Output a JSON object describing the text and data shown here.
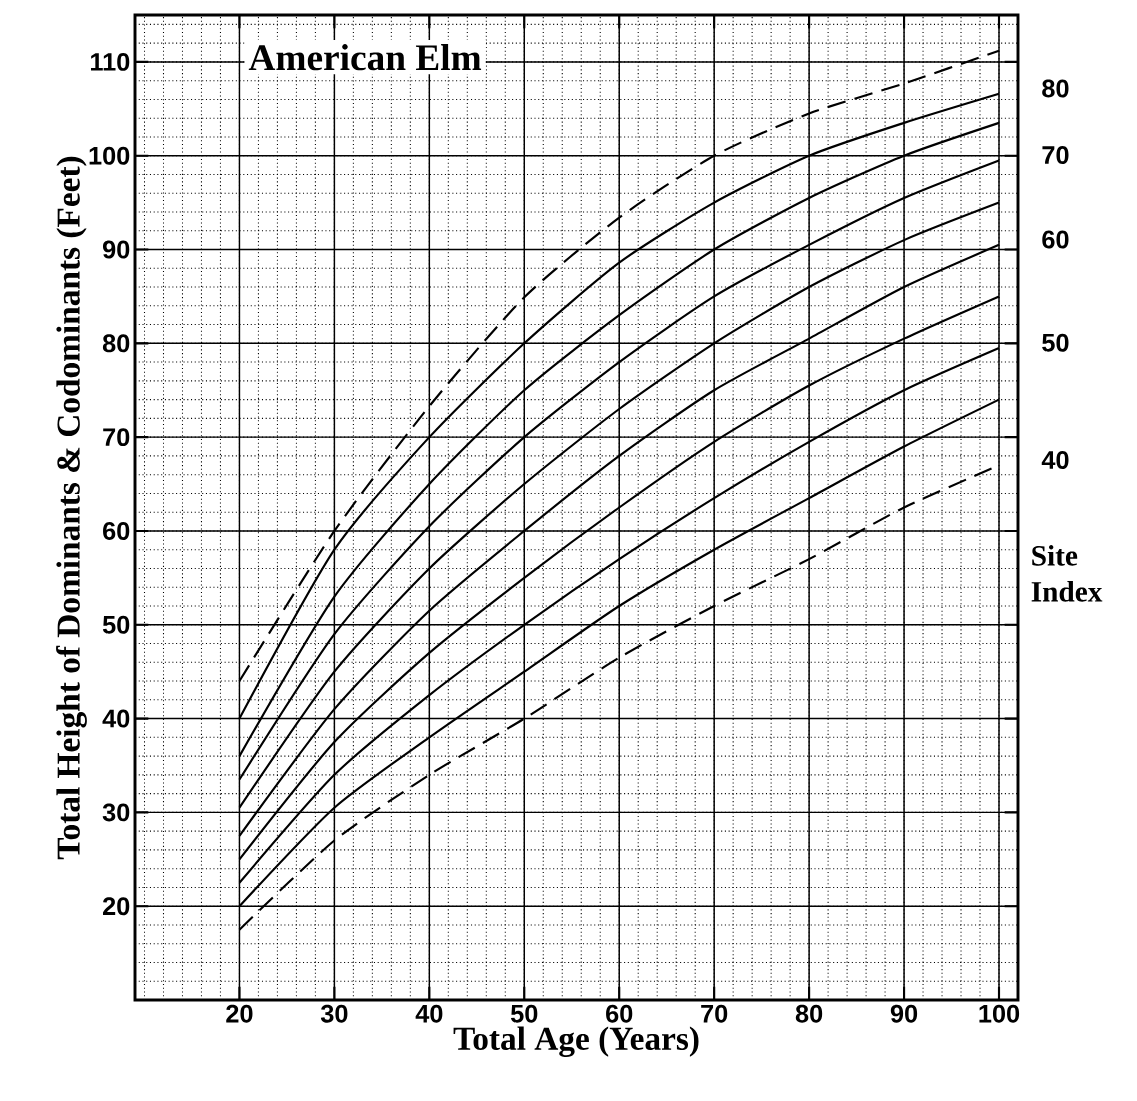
{
  "chart_data": {
    "type": "line",
    "title": "American Elm",
    "xlabel": "Total Age (Years)",
    "ylabel": "Total Height of Dominants & Codominants (Feet)",
    "x": [
      20,
      30,
      40,
      50,
      60,
      70,
      80,
      90,
      100
    ],
    "series": [
      {
        "color": "#000000",
        "line_style": "dashed",
        "values": [
          44,
          60,
          73.3,
          84.9,
          93.4,
          100,
          104.5,
          107.7,
          111.2
        ]
      },
      {
        "name": "80",
        "color": "#000000",
        "line_style": "solid",
        "values": [
          40,
          58,
          70,
          80,
          88.6,
          95,
          100,
          103.5,
          106.6
        ]
      },
      {
        "color": "#000000",
        "line_style": "solid",
        "values": [
          36,
          53,
          65,
          75,
          83,
          90,
          95.5,
          100,
          103.5
        ]
      },
      {
        "name": "70",
        "color": "#000000",
        "line_style": "solid",
        "values": [
          33.5,
          49,
          60.5,
          70,
          78,
          85,
          90.5,
          95.5,
          99.5
        ]
      },
      {
        "color": "#000000",
        "line_style": "solid",
        "values": [
          30.5,
          45,
          56,
          65,
          73,
          80,
          86,
          91,
          95
        ]
      },
      {
        "name": "60",
        "color": "#000000",
        "line_style": "solid",
        "values": [
          27.5,
          41,
          51.5,
          60,
          68,
          75,
          80.5,
          86,
          90.5
        ]
      },
      {
        "color": "#000000",
        "line_style": "solid",
        "values": [
          25,
          37.5,
          47,
          55,
          62.5,
          69.5,
          75.5,
          80.5,
          85
        ]
      },
      {
        "name": "50",
        "color": "#000000",
        "line_style": "solid",
        "values": [
          22.5,
          34,
          42.5,
          50,
          57,
          63.5,
          69.5,
          75,
          79.5
        ]
      },
      {
        "color": "#000000",
        "line_style": "solid",
        "values": [
          20,
          30.5,
          38,
          45,
          52,
          58,
          63.5,
          69,
          74
        ]
      },
      {
        "name": "40",
        "color": "#000000",
        "line_style": "dashed",
        "values": [
          17.5,
          27,
          34,
          40,
          46.5,
          52,
          57,
          62.5,
          67
        ]
      }
    ],
    "xlim": [
      9,
      102
    ],
    "ylim": [
      10,
      115
    ],
    "xticks": [
      20,
      30,
      40,
      50,
      60,
      70,
      80,
      90,
      100
    ],
    "yticks": [
      20,
      30,
      40,
      50,
      60,
      70,
      80,
      90,
      100,
      110
    ],
    "grid": true,
    "legend": "right",
    "annotations": [
      "Site Index"
    ]
  }
}
